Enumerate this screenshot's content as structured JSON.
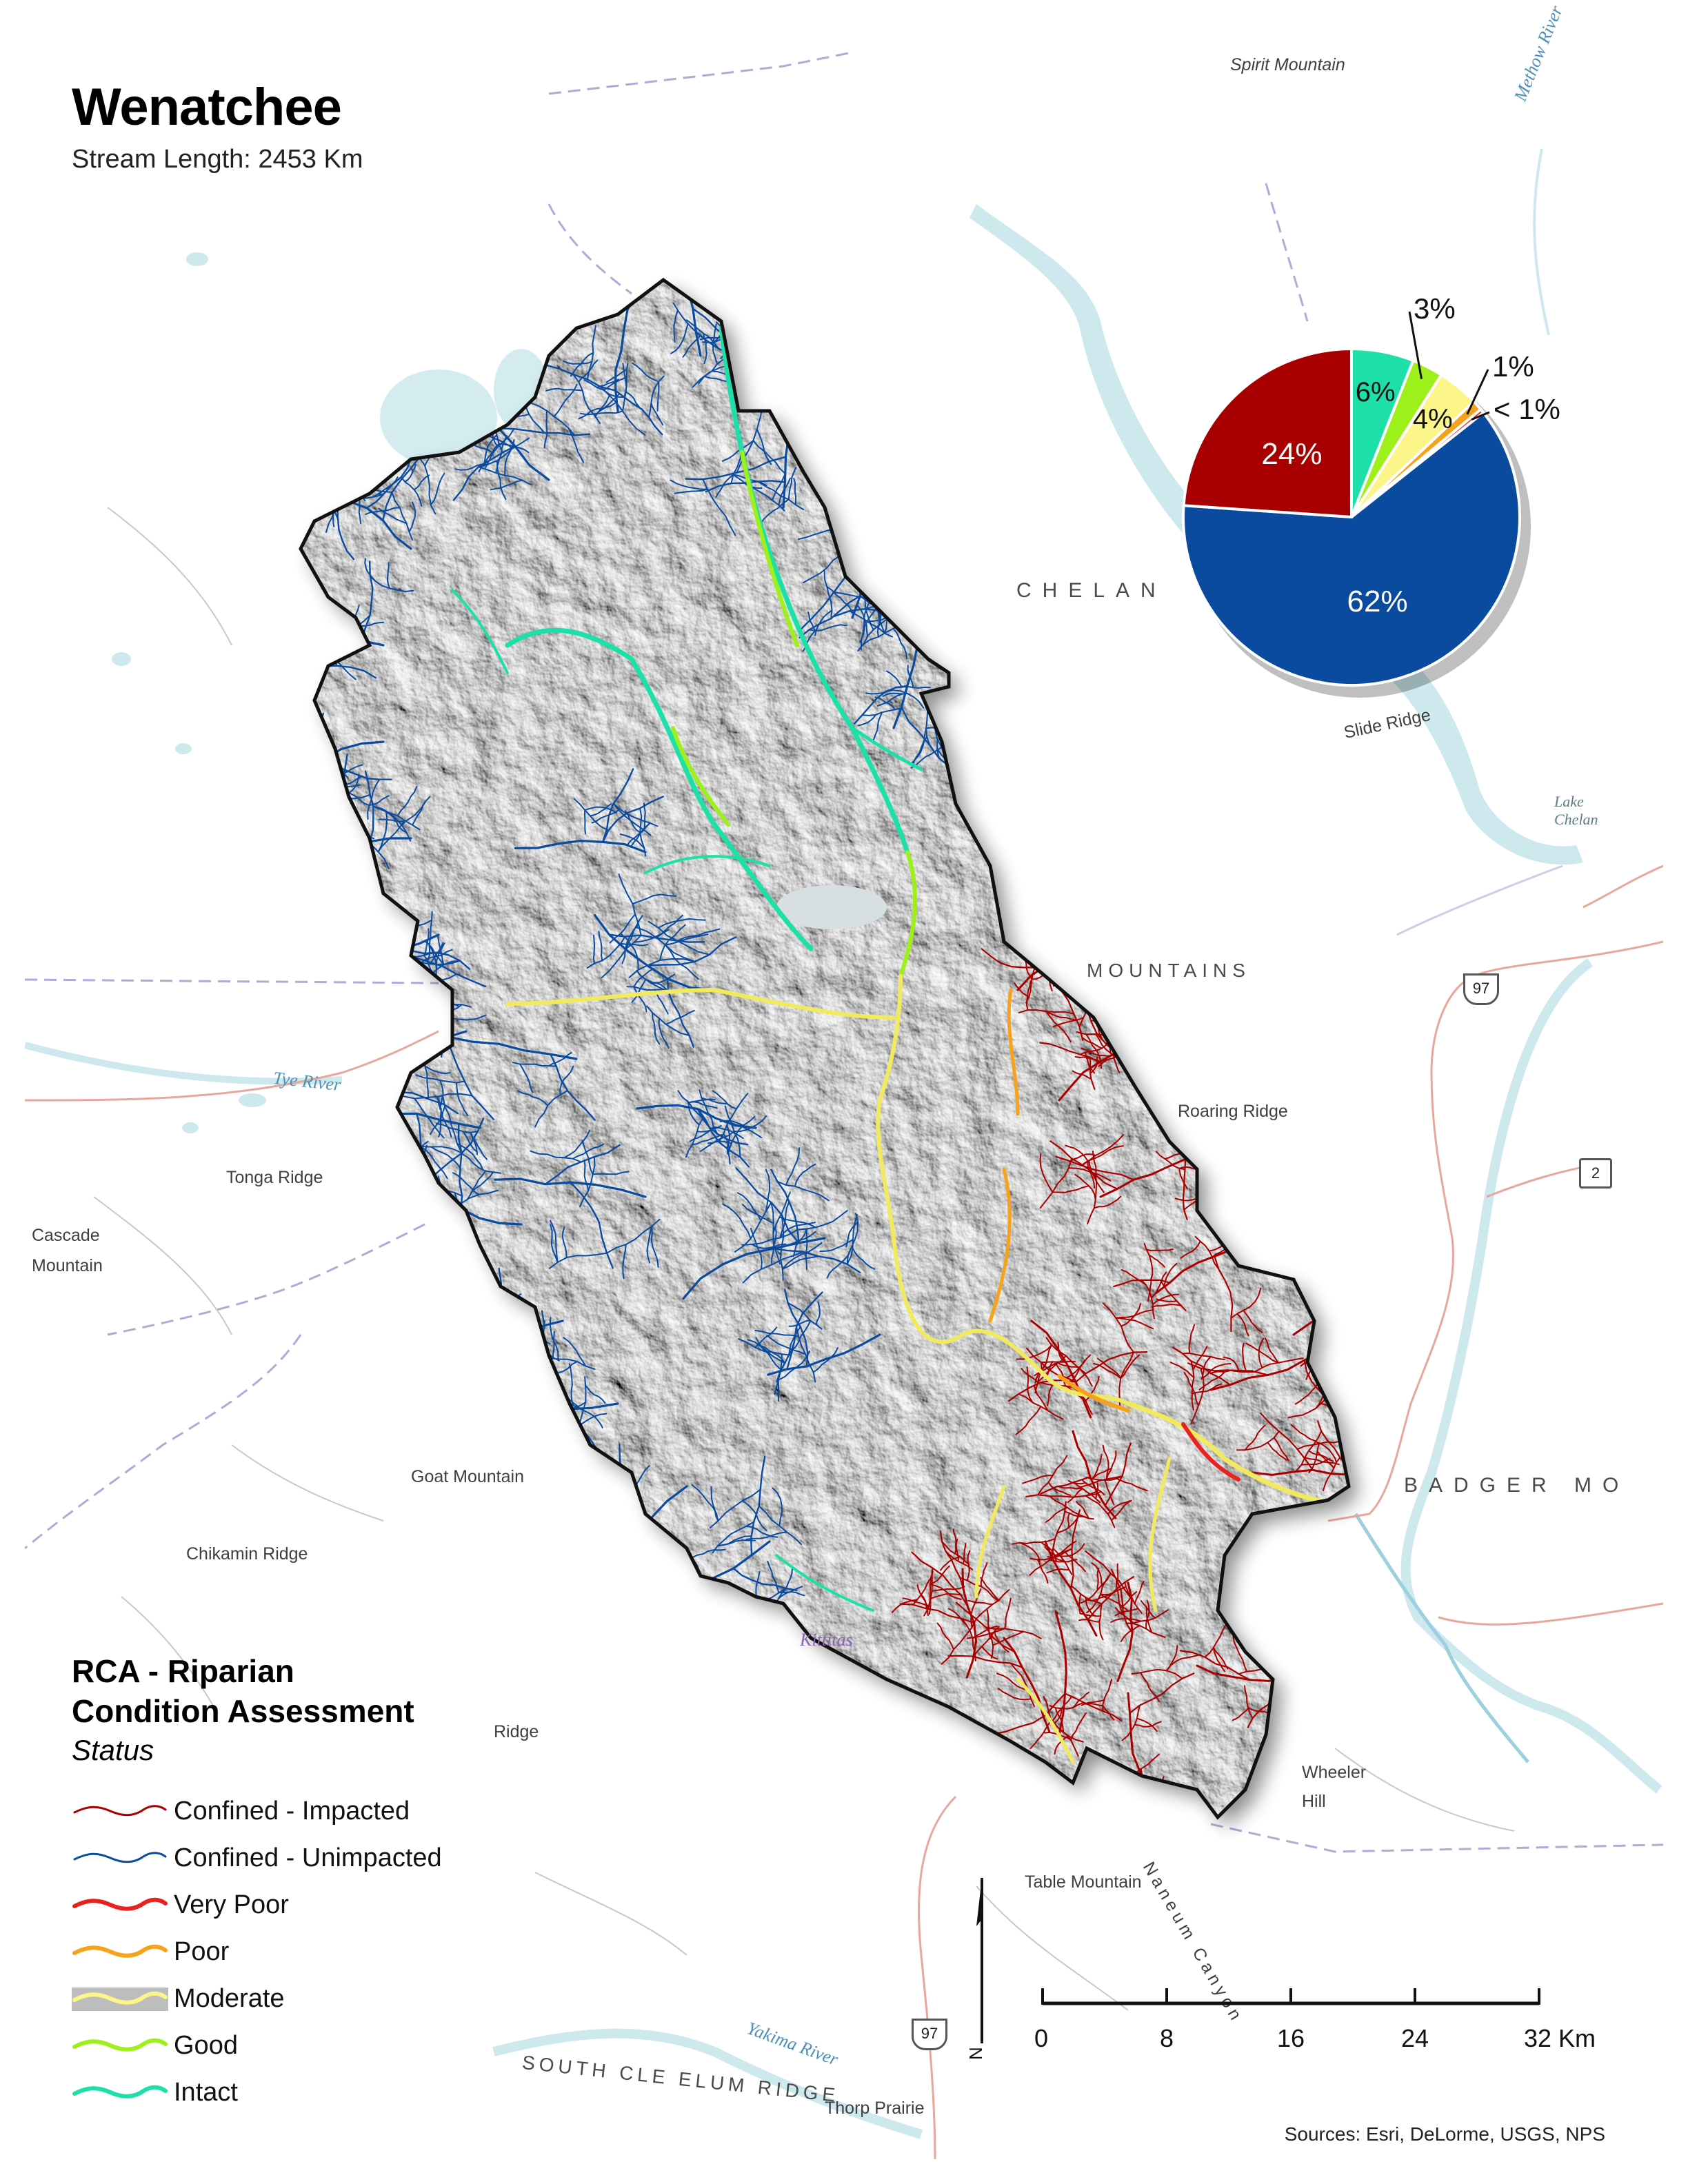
{
  "title": "Wenatchee",
  "subtitle": "Stream Length: 2453 Km",
  "pie": {
    "slices": [
      {
        "status": "Intact",
        "percent": 6,
        "label": "6%",
        "color": "#1de0a8"
      },
      {
        "status": "Good",
        "percent": 3,
        "label": "3%",
        "color": "#9ef01a"
      },
      {
        "status": "Moderate",
        "percent": 4,
        "label": "4%",
        "color": "#fbf58a"
      },
      {
        "status": "Poor",
        "percent": 1,
        "label": "1%",
        "color": "#f7a21b"
      },
      {
        "status": "Very Poor",
        "percent": 0.4,
        "label": "< 1%",
        "color": "#e8231f"
      },
      {
        "status": "Confined - Unimpacted",
        "percent": 62,
        "label": "62%",
        "color": "#0a4ba0"
      },
      {
        "status": "Confined - Impacted",
        "percent": 24,
        "label": "24%",
        "color": "#a80000"
      }
    ]
  },
  "legend": {
    "title_line1": "RCA - Riparian",
    "title_line2": "Condition Assessment",
    "subtitle": "Status",
    "items": [
      {
        "label": "Confined - Impacted",
        "color": "#a80000",
        "style": "thin"
      },
      {
        "label": "Confined - Unimpacted",
        "color": "#0a4ba0",
        "style": "thin"
      },
      {
        "label": "Very Poor",
        "color": "#e8231f",
        "style": "thick"
      },
      {
        "label": "Poor",
        "color": "#f7a21b",
        "style": "thick"
      },
      {
        "label": "Moderate",
        "color": "#fbf58a",
        "style": "halo"
      },
      {
        "label": "Good",
        "color": "#9ef01a",
        "style": "thick"
      },
      {
        "label": "Intact",
        "color": "#1de0a8",
        "style": "thick"
      }
    ]
  },
  "scale_bar": {
    "ticks": [
      "0",
      "8",
      "16",
      "24",
      "32 Km"
    ],
    "north_label": "N"
  },
  "basemap_labels": {
    "spirit_mountain": "Spirit Mountain",
    "methow_river": "Methow River",
    "chelan": "CHELAN",
    "slide_ridge": "Slide Ridge",
    "lake_chelan": "Lake Chelan",
    "chelan_mountains": "MOUNTAINS",
    "roaring_ridge": "Roaring Ridge",
    "tonga_ridge": "Tonga Ridge",
    "tye_river": "Tye River",
    "cascade_mountain": "Cascade Mountain",
    "goat_mountain": "Goat Mountain",
    "chikamin_ridge": "Chikamin Ridge",
    "badger": "BADGER MO",
    "ridge": "Ridge",
    "kittitas": "Kittitas",
    "wheeler_hill": "Wheeler Hill",
    "table_mountain": "Table Mountain",
    "naneum_canyon": "Naneum Canyon",
    "yakima_river": "Yakima River",
    "south_cle_elum": "SOUTH CLE ELUM RIDGE",
    "thorp_prairie": "Thorp Prairie",
    "hwy_97_a": "97",
    "hwy_97_b": "97",
    "hwy_2": "2"
  },
  "sources": "Sources: Esri, DeLorme, USGS, NPS"
}
